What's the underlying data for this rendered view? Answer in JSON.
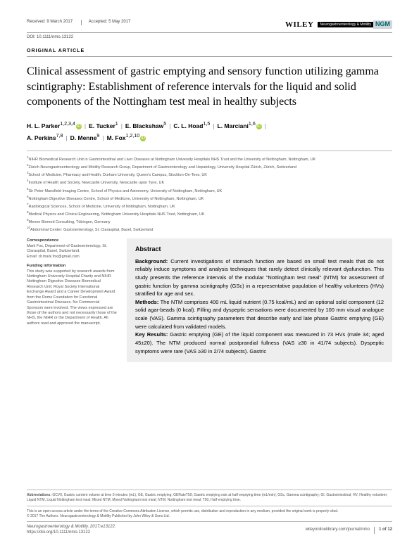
{
  "header": {
    "received": "Received: 9 March 2017",
    "accepted": "Accepted: 5 May 2017",
    "doi": "DOI: 10.1111/nmo.13122",
    "publisher": "WILEY",
    "journal_badge_dark": "Neurogastroenterology & Motility",
    "journal_badge_light": "NGM"
  },
  "article_type": "ORIGINAL ARTICLE",
  "title": "Clinical assessment of gastric emptying and sensory function utilizing gamma scintigraphy: Establishment of reference intervals for the liquid and solid components of the Nottingham test meal in healthy subjects",
  "authors": [
    {
      "name": "H. L. Parker",
      "sup": "1,2,3,4",
      "orcid": true
    },
    {
      "name": "E. Tucker",
      "sup": "1",
      "orcid": false
    },
    {
      "name": "E. Blackshaw",
      "sup": "5",
      "orcid": false
    },
    {
      "name": "C. L. Hoad",
      "sup": "1,5",
      "orcid": false
    },
    {
      "name": "L. Marciani",
      "sup": "1,6",
      "orcid": true
    },
    {
      "name": "A. Perkins",
      "sup": "7,8",
      "orcid": false
    },
    {
      "name": "D. Menne",
      "sup": "9",
      "orcid": false
    },
    {
      "name": "M. Fox",
      "sup": "1,2,10",
      "orcid": true
    }
  ],
  "affiliations": [
    "NIHR Biomedical Research Unit in Gastrointestinal and Liver Diseases at Nottingham University Hospitals NHS Trust and the University of Nottingham, Nottingham, UK",
    "Zürich Neurogastroenterology and Motility Research Group, Department of Gastroenterology and Hepatology, University Hospital Zürich, Zürich, Switzerland",
    "School of Medicine, Pharmacy and Health, Durham University, Queen's Campus, Stockton-On-Tees, UK",
    "Institute of Health and Society, Newcastle University, Newcastle upon Tyne, UK",
    "Sir Peter Mansfield Imaging Centre, School of Physics and Astronomy, University of Nottingham, Nottingham, UK",
    "Nottingham Digestive Diseases Centre, School of Medicine, University of Nottingham, Nottingham, UK",
    "Radiological Sciences, School of Medicine, University of Nottingham, Nottingham, UK",
    "Medical Physics and Clinical Engineering, Nottingham University Hospitals NHS Trust, Nottingham, UK",
    "Menne Biomed Consulting, Tübingen, Germany",
    "Abdominal Center: Gastroenterology, St. Claraspital, Basel, Switzerland"
  ],
  "correspondence": {
    "heading": "Correspondence",
    "lines": "Mark Fox, Department of Gastroenterology, St. Claraspital, Basel, Switzerland.",
    "email": "Email: dr.mark.fox@gmail.com"
  },
  "funding": {
    "heading": "Funding information",
    "text": "This study was supported by research awards from Nottingham University Hospital Charity and NIHR Nottingham Digestive Diseases Biomedical Research Unit; Royal Society International Exchange Award and a Career Development Award from the Rome Foundation for Functional Gastrointestinal Diseases. No Commercial Sponsors were involved. The views expressed are those of the authors and not necessarily those of the NHS, the NIHR or the Department of Health. All authors read and approved the manuscript."
  },
  "abstract": {
    "heading": "Abstract",
    "background": "Background: Current investigations of stomach function are based on small test meals that do not reliably induce symptoms and analysis techniques that rarely detect clinically relevant dysfunction. This study presents the reference intervals of the modular \"Nottingham test meal\" (NTM) for assessment of gastric function by gamma scintigraphy (GSc) in a representative population of healthy volunteers (HVs) stratified for age and sex.",
    "methods": "Methods: The NTM comprises 400 mL liquid nutrient (0.75 kcal/mL) and an optional solid component (12 solid agar-beads (0 kcal). Filling and dyspeptic sensations were documented by 100 mm visual analogue scale (VAS). Gamma scintigraphy parameters that describe early and late phase Gastric emptying (GE) were calculated from validated models.",
    "keyresults": "Key Results: Gastric emptying (GE) of the liquid component was measured in 73 HVs (male 34; aged 45±20). The NTM produced normal postprandial fullness (VAS ≥30 in 41/74 subjects). Dyspeptic symptoms were rare (VAS ≥30 in 2/74 subjects). Gastric"
  },
  "footer": {
    "abbr_label": "Abbreviations:",
    "abbr_text": " GCV0, Gastric content volume at time 0 minutes (mL); GE, Gastric emptying; GERateT50, Gastric emptying rate at half emptying time (mL/min); GSc, Gamma scintigraphy; GI, Gastrointestinal; HV, Healthy volunteer; Liquid NTM, Liquid Nottingham test meal; Mixed NTM, Mixed Nottingham test meal; NTM, Nottingham test meal; T50, Half emptying time.",
    "license": "This is an open access article under the terms of the Creative Commons Attribution License, which permits use, distribution and reproduction in any medium, provided the original work is properly cited.",
    "copyright": "© 2017 The Authors. Neurogastroenterology & Motility Published by John Wiley & Sons Ltd.",
    "citation": "Neurogastroenterology & Motility. 2017;e13122.",
    "doilink": "https://doi.org/10.1111/nmo.13122",
    "site": "wileyonlinelibrary.com/journal/nmo",
    "page": "1 of 12"
  }
}
